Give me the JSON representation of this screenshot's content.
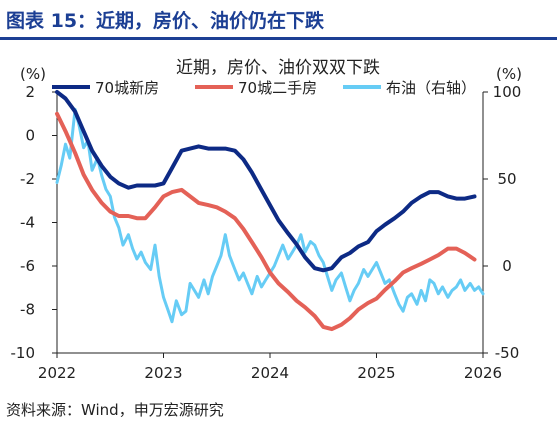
{
  "header": {
    "title": "图表 15：近期，房价、油价仍在下跌"
  },
  "source": "资料来源：Wind，申万宏源研究",
  "colors": {
    "header": "#1c3f94",
    "new_home": "#0d2a85",
    "second_hand": "#e46157",
    "oil": "#66ccf5",
    "axis": "#222222"
  },
  "chart_data": {
    "type": "line",
    "title": "近期，房价、油价双双下跌",
    "y_left_unit": "(%)",
    "y_right_unit": "(%)",
    "x_ticks": [
      "2022",
      "2023",
      "2024",
      "2025",
      "2026"
    ],
    "x_range": [
      2022.0,
      2026.0
    ],
    "y_left": {
      "ticks": [
        2,
        0,
        -2,
        -4,
        -6,
        -8,
        -10
      ],
      "range": [
        -10,
        2
      ]
    },
    "y_right": {
      "ticks": [
        100,
        50,
        0,
        -50
      ],
      "range": [
        -50,
        100
      ]
    },
    "legend": {
      "position": "top"
    },
    "series": [
      {
        "name": "70城新房",
        "axis": "left",
        "x": [
          2022.0,
          2022.08,
          2022.17,
          2022.25,
          2022.33,
          2022.42,
          2022.5,
          2022.58,
          2022.67,
          2022.75,
          2022.83,
          2022.92,
          2023.0,
          2023.08,
          2023.17,
          2023.25,
          2023.33,
          2023.42,
          2023.5,
          2023.58,
          2023.67,
          2023.75,
          2023.83,
          2023.92,
          2024.0,
          2024.08,
          2024.17,
          2024.25,
          2024.33,
          2024.42,
          2024.5,
          2024.58,
          2024.67,
          2024.75,
          2024.83,
          2024.92,
          2025.0,
          2025.08,
          2025.17,
          2025.25,
          2025.33,
          2025.42,
          2025.5,
          2025.58,
          2025.67,
          2025.75,
          2025.83,
          2025.92
        ],
        "values": [
          2.0,
          1.7,
          1.1,
          0.2,
          -0.7,
          -1.4,
          -1.9,
          -2.2,
          -2.4,
          -2.3,
          -2.3,
          -2.3,
          -2.2,
          -1.5,
          -0.7,
          -0.6,
          -0.5,
          -0.6,
          -0.6,
          -0.6,
          -0.7,
          -1.1,
          -1.7,
          -2.5,
          -3.2,
          -3.9,
          -4.5,
          -5.0,
          -5.6,
          -6.1,
          -6.2,
          -6.1,
          -5.6,
          -5.4,
          -5.1,
          -4.9,
          -4.4,
          -4.1,
          -3.8,
          -3.5,
          -3.1,
          -2.8,
          -2.6,
          -2.6,
          -2.8,
          -2.9,
          -2.9,
          -2.8
        ]
      },
      {
        "name": "70城二手房",
        "axis": "left",
        "x": [
          2022.0,
          2022.08,
          2022.17,
          2022.25,
          2022.33,
          2022.42,
          2022.5,
          2022.58,
          2022.67,
          2022.75,
          2022.83,
          2022.92,
          2023.0,
          2023.08,
          2023.17,
          2023.25,
          2023.33,
          2023.42,
          2023.5,
          2023.58,
          2023.67,
          2023.75,
          2023.83,
          2023.92,
          2024.0,
          2024.08,
          2024.17,
          2024.25,
          2024.33,
          2024.42,
          2024.5,
          2024.58,
          2024.67,
          2024.75,
          2024.83,
          2024.92,
          2025.0,
          2025.08,
          2025.17,
          2025.25,
          2025.33,
          2025.42,
          2025.5,
          2025.58,
          2025.67,
          2025.75,
          2025.83,
          2025.92
        ],
        "values": [
          1.0,
          0.2,
          -0.8,
          -1.8,
          -2.5,
          -3.1,
          -3.5,
          -3.7,
          -3.7,
          -3.8,
          -3.8,
          -3.3,
          -2.8,
          -2.6,
          -2.5,
          -2.8,
          -3.1,
          -3.2,
          -3.3,
          -3.5,
          -3.8,
          -4.3,
          -4.9,
          -5.6,
          -6.3,
          -6.8,
          -7.2,
          -7.6,
          -7.9,
          -8.3,
          -8.8,
          -8.9,
          -8.7,
          -8.4,
          -8.0,
          -7.7,
          -7.5,
          -7.1,
          -6.7,
          -6.3,
          -6.1,
          -5.9,
          -5.7,
          -5.5,
          -5.2,
          -5.2,
          -5.4,
          -5.7
        ]
      },
      {
        "name": "布油（右轴）",
        "axis": "right",
        "x": [
          2022.0,
          2022.04,
          2022.08,
          2022.12,
          2022.17,
          2022.21,
          2022.25,
          2022.29,
          2022.33,
          2022.38,
          2022.42,
          2022.46,
          2022.5,
          2022.54,
          2022.58,
          2022.62,
          2022.67,
          2022.71,
          2022.75,
          2022.79,
          2022.83,
          2022.88,
          2022.92,
          2022.96,
          2023.0,
          2023.04,
          2023.08,
          2023.12,
          2023.17,
          2023.21,
          2023.25,
          2023.29,
          2023.33,
          2023.38,
          2023.42,
          2023.46,
          2023.5,
          2023.54,
          2023.58,
          2023.62,
          2023.67,
          2023.71,
          2023.75,
          2023.79,
          2023.83,
          2023.88,
          2023.92,
          2023.96,
          2024.0,
          2024.04,
          2024.08,
          2024.12,
          2024.17,
          2024.21,
          2024.25,
          2024.29,
          2024.33,
          2024.38,
          2024.42,
          2024.46,
          2024.5,
          2024.54,
          2024.58,
          2024.62,
          2024.67,
          2024.71,
          2024.75,
          2024.79,
          2024.83,
          2024.88,
          2024.92,
          2024.96,
          2025.0,
          2025.04,
          2025.08,
          2025.12,
          2025.17,
          2025.21,
          2025.25,
          2025.29,
          2025.33,
          2025.38,
          2025.42,
          2025.46,
          2025.5,
          2025.54,
          2025.58,
          2025.62,
          2025.67,
          2025.71,
          2025.75,
          2025.79,
          2025.83,
          2025.88,
          2025.92,
          2025.96,
          2026.0
        ],
        "values": [
          48,
          58,
          70,
          62,
          90,
          80,
          68,
          72,
          55,
          62,
          52,
          44,
          40,
          28,
          22,
          12,
          18,
          10,
          4,
          8,
          2,
          -2,
          12,
          -6,
          -18,
          -25,
          -32,
          -20,
          -28,
          -26,
          -10,
          -14,
          -18,
          -8,
          -16,
          -6,
          0,
          6,
          18,
          6,
          -2,
          -8,
          -4,
          -10,
          -16,
          -6,
          -12,
          -8,
          -4,
          0,
          6,
          12,
          4,
          8,
          12,
          18,
          8,
          14,
          12,
          6,
          2,
          -6,
          -14,
          -8,
          -4,
          -12,
          -20,
          -14,
          -10,
          -2,
          -6,
          -2,
          2,
          -4,
          -10,
          -8,
          -16,
          -22,
          -26,
          -18,
          -16,
          -22,
          -14,
          -20,
          -8,
          -10,
          -16,
          -12,
          -18,
          -14,
          -12,
          -8,
          -14,
          -10,
          -14,
          -12,
          -16
        ]
      }
    ]
  }
}
